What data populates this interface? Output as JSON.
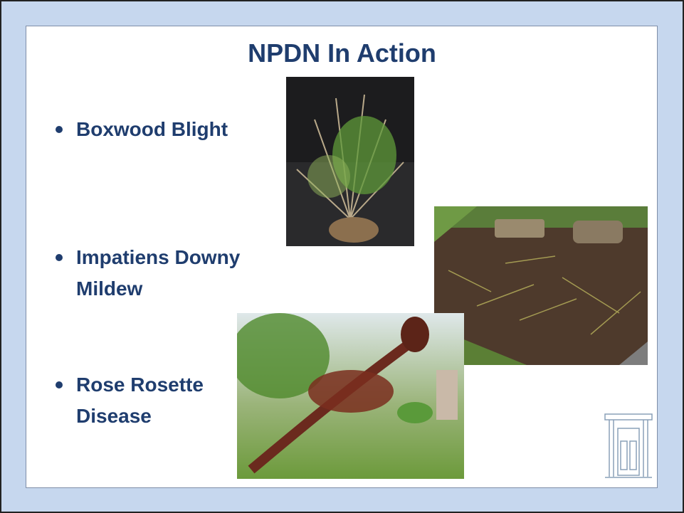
{
  "slide": {
    "title": "NPDN In Action",
    "bullets": [
      [
        "Boxwood Blight"
      ],
      [
        "Impatiens Downy",
        "Mildew"
      ],
      [
        "Rose Rosette",
        "Disease"
      ]
    ]
  }
}
